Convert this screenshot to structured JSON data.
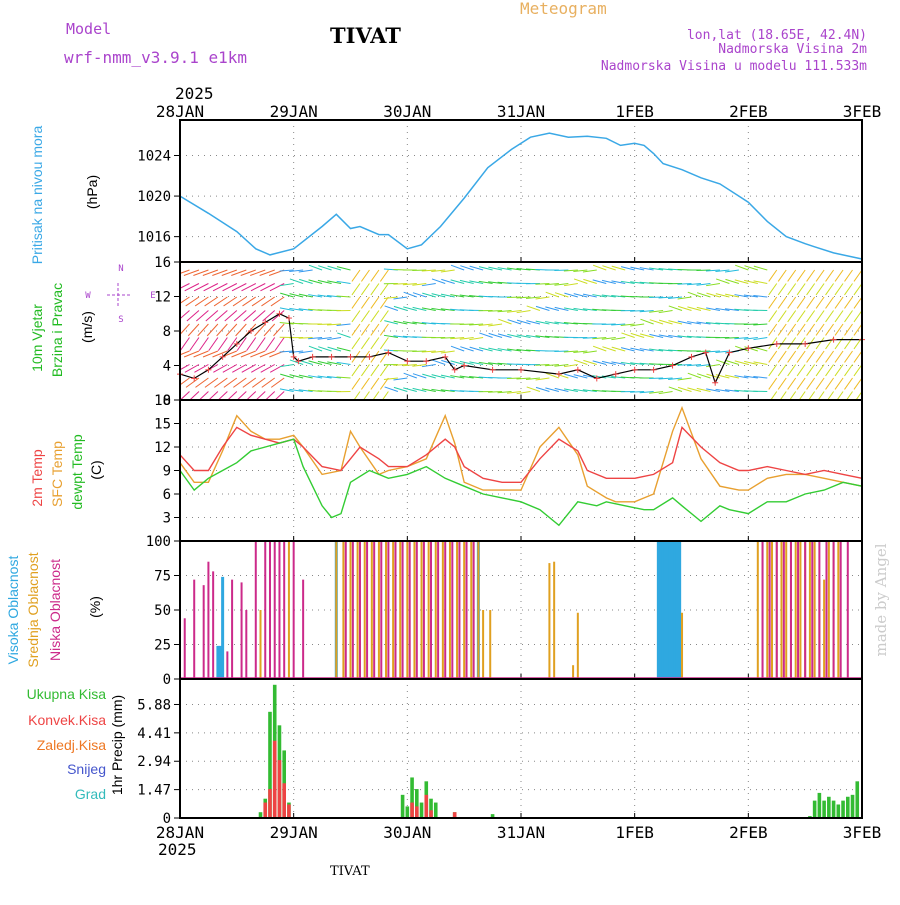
{
  "header": {
    "model_label": "Model",
    "model_name": "wrf-nmm_v3.9.1 e1km",
    "station": "TIVAT",
    "product": "Meteogram",
    "lonlat": "lon,lat (18.65E, 42.4N)",
    "elevation": "Nadmorska Visina 2m",
    "model_elevation": "Nadmorska Visina u modelu 111.533m",
    "watermark": "made by Angel",
    "footer_station": "TIVAT"
  },
  "colors": {
    "pressure": "#3aa8e6",
    "wind_title": "#22bb22",
    "temp2m": "#ee4444",
    "sfc": "#e8a030",
    "dewpt": "#33cc33",
    "cloud_high": "#2fa8e0",
    "cloud_mid": "#e0a020",
    "cloud_low": "#cc2a8a",
    "rain_total": "#33bb33",
    "rain_conv": "#ee4444",
    "rain_frozen": "#ee7722",
    "snow": "#4455cc",
    "hail": "#33bbbb",
    "header_purple": "#aa44cc",
    "header_orange": "#e8b060",
    "watermark": "#cccccc"
  },
  "time_axis": {
    "year": "2025",
    "ticks": [
      "28JAN",
      "29JAN",
      "30JAN",
      "31JAN",
      "1FEB",
      "2FEB",
      "3FEB"
    ],
    "hours_span": 144
  },
  "chart_data": [
    {
      "type": "line",
      "panel": "pressure",
      "title": "Pritisak na nivou mora",
      "ylabel": "(hPa)",
      "ylim": [
        1013.5,
        1027.5
      ],
      "yticks": [
        "1016",
        "1020",
        "1024"
      ],
      "grid": true,
      "series": [
        {
          "name": "Pritisak na nivou mora",
          "x": [
            0,
            6,
            12,
            16,
            19,
            24,
            30,
            33,
            36,
            38,
            42,
            44,
            48,
            51,
            55,
            60,
            65,
            70,
            74,
            78,
            82,
            86,
            90,
            93,
            96,
            98,
            100,
            102,
            106,
            110,
            114,
            118,
            120,
            124,
            128,
            132,
            134,
            138,
            144
          ],
          "values": [
            1020.0,
            1018.3,
            1016.5,
            1014.8,
            1014.2,
            1014.8,
            1017.0,
            1018.2,
            1016.8,
            1017.0,
            1016.2,
            1016.2,
            1014.8,
            1015.2,
            1017.0,
            1019.8,
            1022.8,
            1024.6,
            1025.8,
            1026.2,
            1025.8,
            1025.9,
            1025.7,
            1025.0,
            1025.2,
            1025.0,
            1024.2,
            1023.2,
            1022.6,
            1021.8,
            1021.2,
            1020.0,
            1019.4,
            1017.5,
            1016.0,
            1015.3,
            1015.0,
            1014.4,
            1013.8
          ]
        }
      ]
    },
    {
      "type": "line",
      "panel": "wind",
      "title": "10m Vjetar Brzina i Pravac",
      "title_line1": "10m Vjetar",
      "title_line2": "Brzina i Pravac",
      "ylabel": "(m/s)",
      "direction_legend": [
        "N",
        "W",
        "E",
        "S"
      ],
      "ylim": [
        0,
        16
      ],
      "yticks": [
        "0",
        "4",
        "8",
        "12",
        "16"
      ],
      "grid": true,
      "series": [
        {
          "name": "wind speed",
          "x": [
            0,
            3,
            6,
            9,
            12,
            15,
            18,
            21,
            23,
            24,
            25,
            28,
            32,
            36,
            40,
            44,
            48,
            52,
            56,
            58,
            60,
            66,
            72,
            80,
            84,
            88,
            92,
            96,
            100,
            104,
            108,
            111,
            113,
            116,
            120,
            126,
            132,
            138,
            144
          ],
          "values": [
            3.0,
            2.5,
            3.5,
            5.0,
            6.5,
            8.0,
            9.0,
            10.0,
            9.5,
            5.0,
            4.5,
            5.0,
            5.0,
            5.0,
            5.0,
            5.5,
            4.5,
            4.5,
            5.0,
            3.5,
            4.0,
            3.5,
            3.5,
            3.0,
            3.5,
            2.5,
            3.0,
            3.5,
            3.5,
            4.0,
            5.0,
            5.5,
            2.0,
            5.5,
            6.0,
            6.5,
            6.5,
            7.0,
            7.0
          ]
        }
      ]
    },
    {
      "type": "line",
      "panel": "temperature",
      "ylabel": "(C)",
      "ylim": [
        0,
        18
      ],
      "yticks": [
        "3",
        "6",
        "9",
        "12",
        "15",
        "18"
      ],
      "grid": true,
      "series": [
        {
          "name": "2m Temp",
          "x": [
            0,
            3,
            6,
            9,
            12,
            15,
            18,
            21,
            24,
            26,
            30,
            34,
            36,
            38,
            42,
            44,
            48,
            52,
            56,
            58,
            60,
            64,
            68,
            72,
            76,
            80,
            84,
            86,
            90,
            92,
            96,
            100,
            104,
            106,
            110,
            114,
            118,
            120,
            124,
            128,
            132,
            136,
            140,
            144
          ],
          "values": [
            11.0,
            9.0,
            9.0,
            12.0,
            14.5,
            13.5,
            13.0,
            12.5,
            13.0,
            12.0,
            9.5,
            9.0,
            10.5,
            12.0,
            10.5,
            9.5,
            9.5,
            11.0,
            13.0,
            12.0,
            9.5,
            8.0,
            7.5,
            7.5,
            10.5,
            13.0,
            11.5,
            9.0,
            8.0,
            8.0,
            8.0,
            8.5,
            10.0,
            14.5,
            12.0,
            10.0,
            9.0,
            9.0,
            9.5,
            9.0,
            8.5,
            9.0,
            8.5,
            8.0
          ]
        },
        {
          "name": "SFC Temp",
          "x": [
            0,
            3,
            6,
            9,
            12,
            15,
            18,
            21,
            24,
            26,
            30,
            34,
            36,
            38,
            42,
            44,
            48,
            52,
            56,
            58,
            60,
            64,
            68,
            72,
            76,
            80,
            84,
            86,
            90,
            92,
            96,
            100,
            104,
            106,
            110,
            114,
            118,
            120,
            124,
            128,
            132,
            136,
            140,
            144
          ],
          "values": [
            10.0,
            7.5,
            7.5,
            11.5,
            16.0,
            14.0,
            13.0,
            13.0,
            13.5,
            12.0,
            8.5,
            9.0,
            14.0,
            12.0,
            8.5,
            9.0,
            9.5,
            10.5,
            16.0,
            12.5,
            7.5,
            6.5,
            6.5,
            6.5,
            12.0,
            14.5,
            11.0,
            7.0,
            5.5,
            5.0,
            5.0,
            6.0,
            14.0,
            17.0,
            10.5,
            7.0,
            6.5,
            6.5,
            8.0,
            8.5,
            8.5,
            8.0,
            7.5,
            7.0
          ]
        },
        {
          "name": "dewpt Temp",
          "x": [
            0,
            3,
            6,
            9,
            12,
            15,
            18,
            21,
            24,
            26,
            30,
            32,
            34,
            36,
            40,
            44,
            48,
            52,
            56,
            60,
            64,
            68,
            72,
            76,
            80,
            84,
            88,
            90,
            94,
            98,
            100,
            104,
            106,
            110,
            114,
            116,
            120,
            124,
            128,
            132,
            136,
            140,
            144
          ],
          "values": [
            9.0,
            6.5,
            8.0,
            9.0,
            10.0,
            11.5,
            12.0,
            12.5,
            13.0,
            9.5,
            4.5,
            3.0,
            3.5,
            7.5,
            9.0,
            8.0,
            8.5,
            9.5,
            8.0,
            7.0,
            6.0,
            5.5,
            5.0,
            4.0,
            2.0,
            5.0,
            4.5,
            5.0,
            4.5,
            4.0,
            4.0,
            5.5,
            4.5,
            2.5,
            4.5,
            4.0,
            3.5,
            5.0,
            5.0,
            6.0,
            6.5,
            7.5,
            7.0
          ]
        }
      ]
    },
    {
      "type": "bar",
      "panel": "cloud",
      "title_lines": [
        "Visoka Oblacnost",
        "Srednja Oblacnost",
        "Niska Oblacnost"
      ],
      "ylabel": "(%)",
      "ylim": [
        0,
        100
      ],
      "yticks": [
        "0",
        "25",
        "50",
        "75",
        "100"
      ],
      "grid": true,
      "series": [
        {
          "name": "Visoka Oblacnost",
          "x": [
            8,
            8.5,
            9,
            33,
            63,
            101,
            101.5,
            102,
            102.5,
            103,
            103.5,
            104,
            104.5,
            105,
            105.5
          ],
          "values": [
            24,
            24,
            74,
            100,
            100,
            100,
            100,
            100,
            100,
            100,
            100,
            100,
            100,
            100,
            100
          ]
        },
        {
          "name": "Srednja Oblacnost",
          "x": [
            17,
            23,
            33,
            34.5,
            36,
            37.5,
            39,
            40.5,
            42,
            43.5,
            45,
            46.5,
            48,
            49.5,
            51,
            52.5,
            54,
            55.5,
            57,
            58.5,
            60,
            61.5,
            63,
            64,
            65.5,
            78,
            79,
            83,
            84,
            106,
            122,
            123,
            124,
            125,
            126,
            127,
            128,
            129,
            130,
            131,
            132,
            133,
            134,
            135,
            136,
            137,
            138,
            139
          ],
          "values": [
            50,
            100,
            100,
            100,
            100,
            100,
            100,
            100,
            100,
            100,
            100,
            100,
            100,
            100,
            100,
            100,
            100,
            100,
            100,
            100,
            100,
            100,
            100,
            50,
            50,
            84,
            85,
            10,
            48,
            48,
            100,
            100,
            100,
            100,
            100,
            100,
            100,
            100,
            100,
            100,
            100,
            100,
            100,
            72,
            72,
            100,
            100,
            100
          ]
        },
        {
          "name": "Niska Oblacnost",
          "x": [
            1,
            3,
            5,
            6,
            7,
            10,
            11,
            13,
            14,
            16,
            18,
            19,
            20,
            21,
            22,
            24,
            26,
            35,
            36.5,
            38,
            39.5,
            41,
            42.5,
            44,
            45.5,
            47,
            48.5,
            50,
            51.5,
            53,
            54.5,
            56,
            57.5,
            59,
            60.5,
            62,
            123,
            124.5,
            126,
            127.5,
            129,
            130.5,
            132,
            133.5,
            135,
            136.5,
            138,
            139.5,
            141
          ],
          "values": [
            44,
            72,
            68,
            85,
            78,
            20,
            72,
            70,
            50,
            100,
            100,
            100,
            100,
            100,
            100,
            100,
            72,
            100,
            100,
            100,
            100,
            100,
            100,
            100,
            100,
            100,
            100,
            100,
            100,
            100,
            100,
            100,
            100,
            100,
            100,
            100,
            100,
            100,
            100,
            100,
            100,
            100,
            100,
            100,
            100,
            100,
            100,
            100,
            100
          ]
        }
      ]
    },
    {
      "type": "bar",
      "panel": "precip",
      "legend": [
        "Ukupna Kisa",
        "Konvek.Kisa",
        "Zaledj.Kisa",
        "Snijeg",
        "Grad"
      ],
      "ylabel": "1hr Precip (mm)",
      "ylim": [
        0,
        7.2
      ],
      "yticks": [
        "0",
        "1.47",
        "2.94",
        "4.41",
        "5.88"
      ],
      "grid": true,
      "series": [
        {
          "name": "Ukupna Kisa",
          "x": [
            17,
            18,
            19,
            20,
            21,
            22,
            23,
            47,
            48,
            49,
            50,
            51,
            52,
            53,
            54,
            58,
            66,
            133,
            134,
            135,
            136,
            137,
            138,
            139,
            140,
            141,
            142,
            143
          ],
          "values": [
            0.3,
            1.0,
            5.5,
            6.9,
            4.8,
            3.5,
            0.8,
            1.2,
            0.6,
            2.1,
            1.5,
            0.8,
            1.9,
            1.0,
            0.8,
            0.3,
            0.2,
            0.1,
            0.9,
            1.3,
            0.9,
            1.1,
            0.9,
            0.7,
            0.9,
            1.1,
            1.2,
            1.9
          ]
        },
        {
          "name": "Konvek.Kisa",
          "x": [
            18,
            19,
            20,
            21,
            22,
            23,
            49,
            50,
            52,
            53,
            58
          ],
          "values": [
            0.8,
            1.5,
            4.0,
            3.0,
            1.8,
            0.7,
            0.8,
            0.6,
            1.2,
            0.4,
            0.3
          ]
        }
      ]
    }
  ]
}
